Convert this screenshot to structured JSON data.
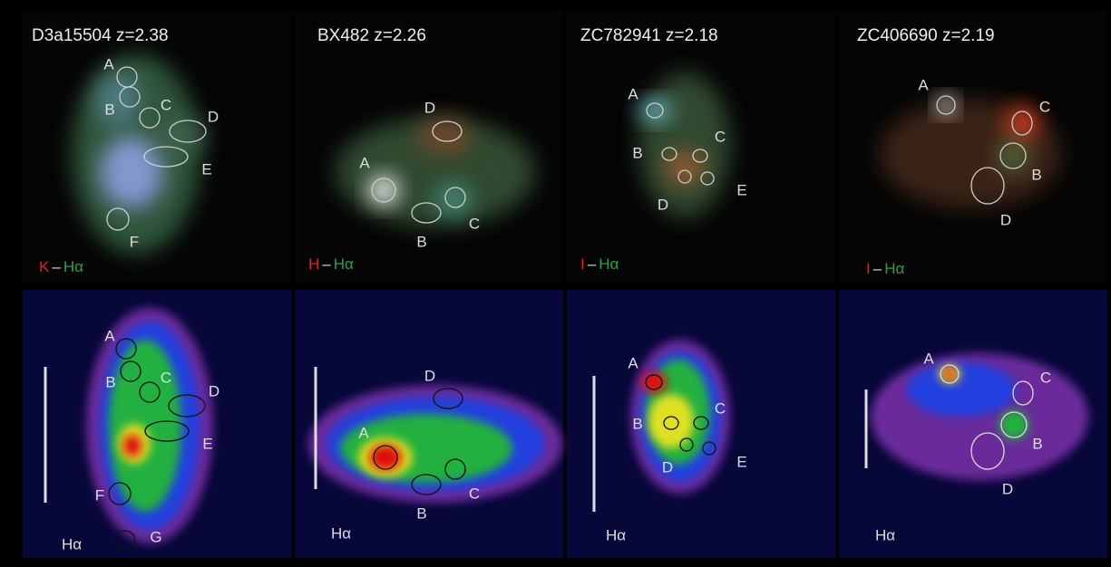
{
  "separator": "–",
  "top_row": [
    {
      "title": "D3a15504 z=2.38",
      "band": "K",
      "line": "Hα",
      "clumps": [
        "A",
        "B",
        "C",
        "D",
        "E",
        "F"
      ]
    },
    {
      "title": "BX482 z=2.26",
      "band": "H",
      "line": "Hα",
      "clumps": [
        "A",
        "B",
        "C",
        "D"
      ]
    },
    {
      "title": "ZC782941 z=2.18",
      "band": "I",
      "line": "Hα",
      "clumps": [
        "A",
        "B",
        "C",
        "D",
        "E"
      ]
    },
    {
      "title": "ZC406690 z=2.19",
      "band": "I",
      "line": "Hα",
      "clumps": [
        "A",
        "C",
        "B",
        "D"
      ]
    }
  ],
  "bottom_row": [
    {
      "label": "Hα",
      "clumps": [
        "A",
        "B",
        "C",
        "D",
        "E",
        "F",
        "G"
      ]
    },
    {
      "label": "Hα",
      "clumps": [
        "A",
        "B",
        "C",
        "D"
      ]
    },
    {
      "label": "Hα",
      "clumps": [
        "A",
        "B",
        "C",
        "D",
        "E"
      ]
    },
    {
      "label": "Hα",
      "clumps": [
        "A",
        "C",
        "B",
        "D"
      ]
    }
  ]
}
